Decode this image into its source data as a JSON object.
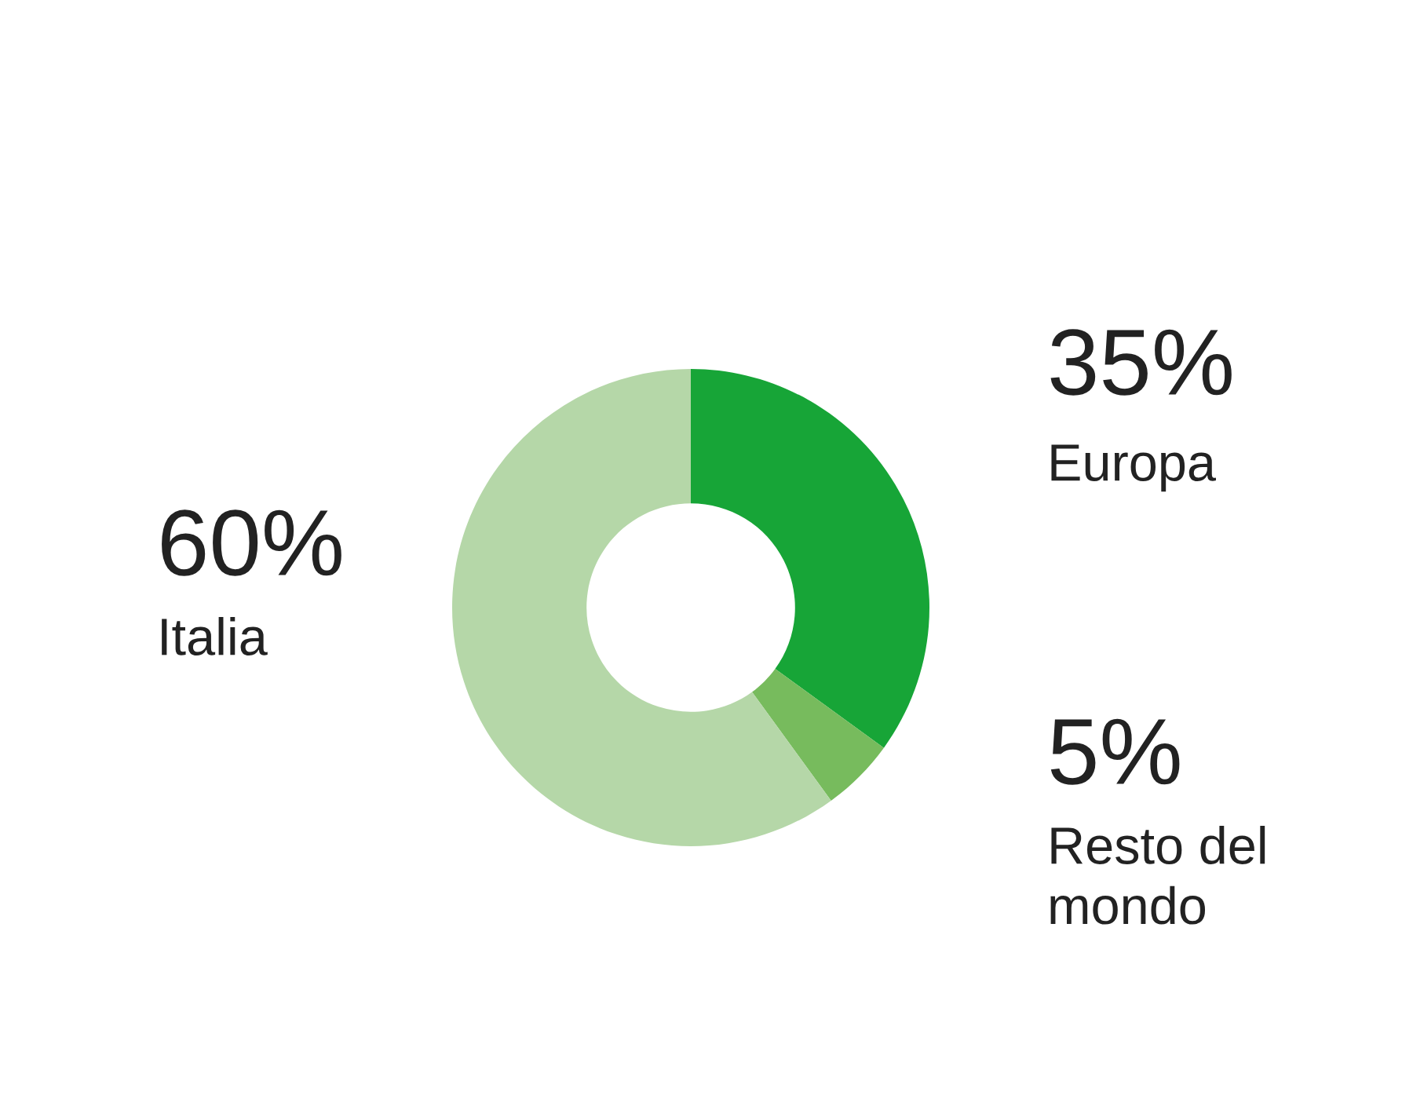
{
  "chart_data": {
    "type": "donut",
    "categories": [
      "Europa",
      "Resto del mondo",
      "Italia"
    ],
    "values": [
      35,
      5,
      60
    ],
    "colors": [
      "#17a537",
      "#77bb5d",
      "#b5d7a8"
    ],
    "value_labels": [
      "35%",
      "5%",
      "60%"
    ]
  }
}
